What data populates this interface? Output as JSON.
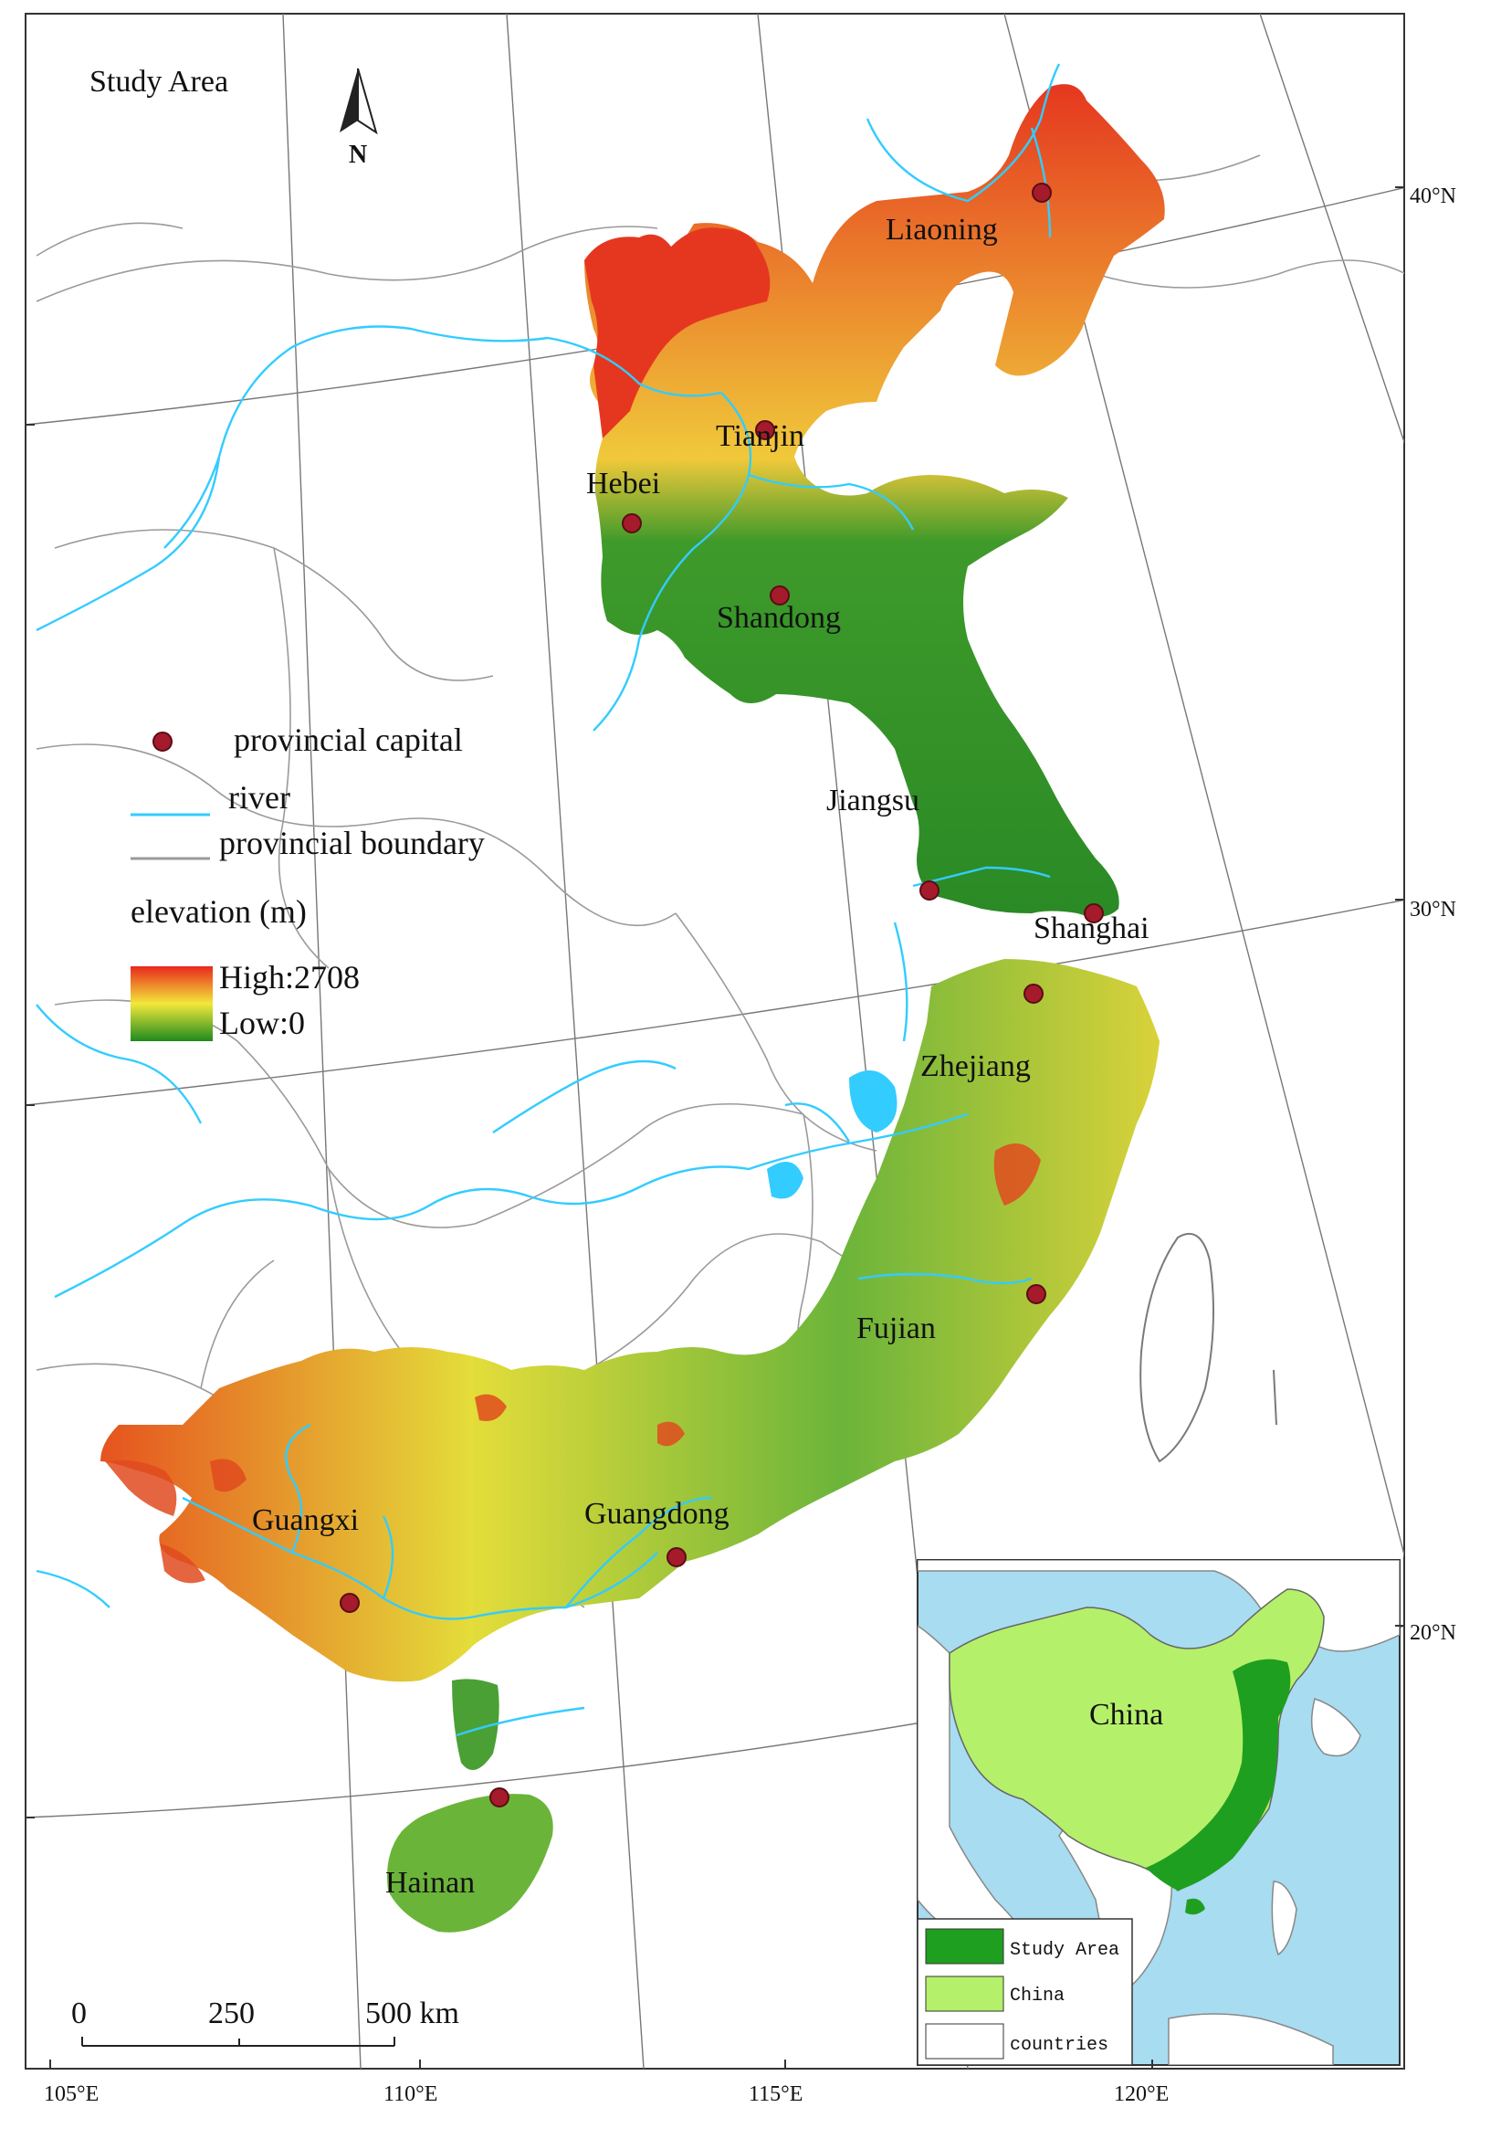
{
  "title": "Study Area",
  "north_arrow": {
    "label": "N"
  },
  "provinces": [
    {
      "name": "Liaoning"
    },
    {
      "name": "Tianjin"
    },
    {
      "name": "Hebei"
    },
    {
      "name": "Shandong"
    },
    {
      "name": "Jiangsu"
    },
    {
      "name": "Shanghai"
    },
    {
      "name": "Zhejiang"
    },
    {
      "name": "Fujian"
    },
    {
      "name": "Guangxi"
    },
    {
      "name": "Guangdong"
    },
    {
      "name": "Hainan"
    }
  ],
  "legend": {
    "capital": "provincial capital",
    "river": "river",
    "boundary": "provincial boundary",
    "elevation_title": "elevation (m)",
    "high": "High:2708",
    "low": "Low:0"
  },
  "lat_labels": [
    "40°N",
    "30°N",
    "20°N"
  ],
  "lon_labels": [
    "105°E",
    "110°E",
    "115°E",
    "120°E"
  ],
  "scale_bar": {
    "ticks": [
      "0",
      "250",
      "500 km"
    ]
  },
  "inset": {
    "country_label": "China",
    "legend": [
      "Study Area",
      "China",
      "countries"
    ]
  },
  "colors": {
    "elev_high": "#e8281c",
    "elev_mid": "#f2e83a",
    "elev_low": "#1f8a1f",
    "river": "#33ccff",
    "capital": "#a51b2b",
    "boundary": "#9a9a9a",
    "inset_sea": "#a8dcf0",
    "inset_china": "#b5f06a",
    "inset_study": "#1f9f1f"
  }
}
